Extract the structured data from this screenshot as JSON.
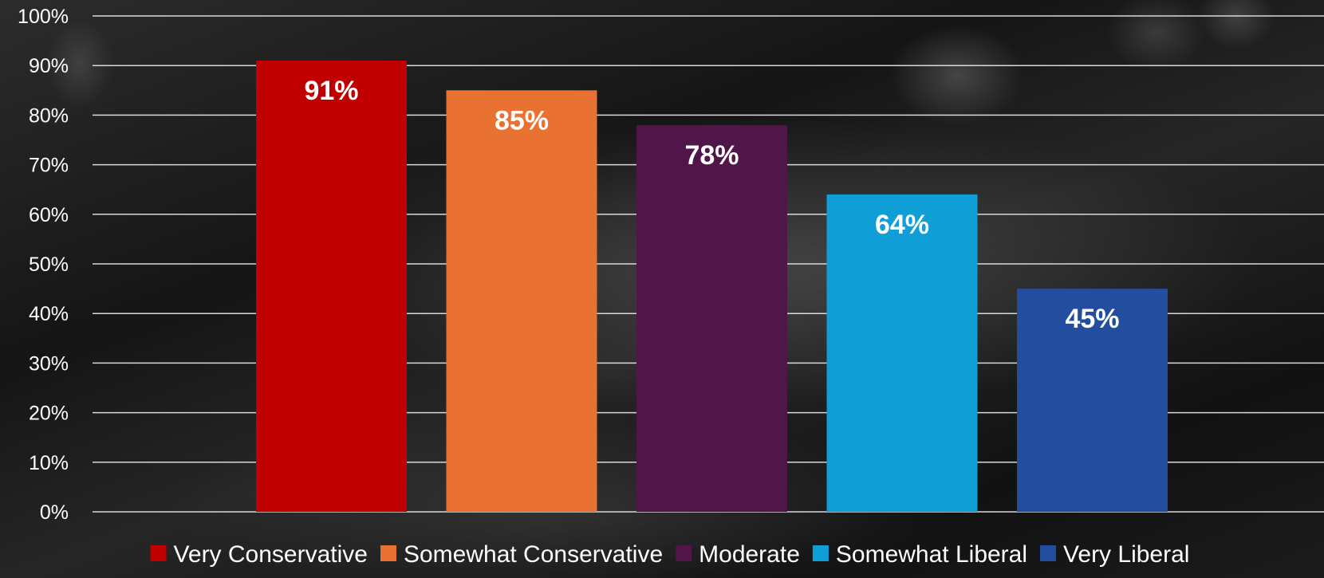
{
  "chart_data": {
    "type": "bar",
    "categories": [
      "Very Conservative",
      "Somewhat Conservative",
      "Moderate",
      "Somewhat Liberal",
      "Very Liberal"
    ],
    "values": [
      91,
      85,
      78,
      64,
      45
    ],
    "data_labels": [
      "91%",
      "85%",
      "78%",
      "64%",
      "45%"
    ],
    "colors": [
      "#C00000",
      "#E97132",
      "#501549",
      "#0F9ED5",
      "#234D9F"
    ],
    "ylim": [
      0,
      100
    ],
    "yticks": [
      0,
      10,
      20,
      30,
      40,
      50,
      60,
      70,
      80,
      90,
      100
    ],
    "ytick_labels": [
      "0%",
      "10%",
      "20%",
      "30%",
      "40%",
      "50%",
      "60%",
      "70%",
      "80%",
      "90%",
      "100%"
    ],
    "grid": true,
    "legend_position": "bottom",
    "title": "",
    "xlabel": "",
    "ylabel": ""
  },
  "colors": {
    "text": "#FFFFFF",
    "gridline": "#D9D9D9"
  }
}
